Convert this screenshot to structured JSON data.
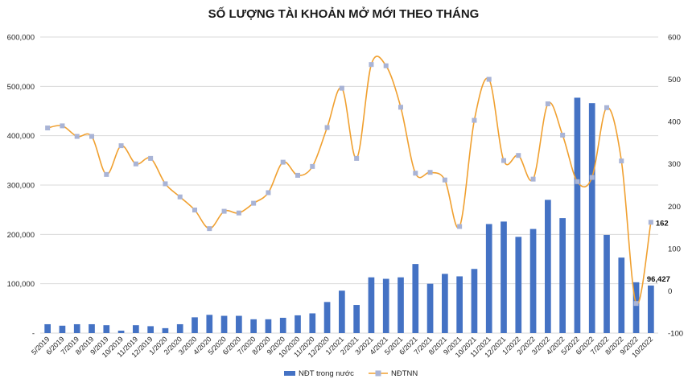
{
  "chart_data": {
    "type": "bar+line",
    "title": "SỐ LƯỢNG TÀI KHOẢN MỞ MỚI THEO THÁNG",
    "categories": [
      "5/2019",
      "6/2019",
      "7/2019",
      "8/2019",
      "9/2019",
      "10/2019",
      "11/2019",
      "12/2019",
      "1/2020",
      "2/2020",
      "3/2020",
      "4/2020",
      "5/2020",
      "6/2020",
      "7/2020",
      "8/2020",
      "9/2020",
      "10/2020",
      "11/2020",
      "12/2020",
      "1/2021",
      "2/2021",
      "3/2021",
      "4/2021",
      "5/2021",
      "6/2021",
      "7/2021",
      "8/2021",
      "9/2021",
      "10/2021",
      "11/2021",
      "12/2021",
      "1/2022",
      "2/2022",
      "3/2022",
      "4/2022",
      "5/2022",
      "6/2022",
      "7/2022",
      "8/2022",
      "9/2022",
      "10/2022"
    ],
    "y_left": {
      "min": 0,
      "max": 600000,
      "step": 100000,
      "ticks": [
        "-",
        "100,000",
        "200,000",
        "300,000",
        "400,000",
        "500,000",
        "600,000"
      ]
    },
    "y_right": {
      "min": -100,
      "max": 600,
      "step": 100,
      "ticks": [
        "-100",
        "0",
        "100",
        "200",
        "300",
        "400",
        "500",
        "600"
      ]
    },
    "series": [
      {
        "name": "NĐT trong nước",
        "type": "bar",
        "axis": "left",
        "color": "#4472c4",
        "values": [
          18000,
          15000,
          18000,
          18000,
          16000,
          5000,
          16000,
          14000,
          10000,
          18000,
          32000,
          37000,
          35000,
          35000,
          28000,
          28000,
          31000,
          36000,
          40000,
          63000,
          86000,
          57000,
          113000,
          110000,
          113000,
          140000,
          100000,
          120000,
          115000,
          130000,
          221000,
          226000,
          195000,
          211000,
          270000,
          233000,
          477000,
          466000,
          199000,
          153000,
          103000,
          96427
        ]
      },
      {
        "name": "NĐTNN",
        "type": "line",
        "axis": "right",
        "color": "#f0a030",
        "marker_color": "#a9b4d6",
        "values": [
          385,
          390,
          365,
          365,
          275,
          343,
          300,
          313,
          253,
          222,
          191,
          147,
          188,
          184,
          207,
          232,
          304,
          273,
          294,
          386,
          479,
          313,
          535,
          532,
          434,
          278,
          280,
          262,
          152,
          403,
          500,
          308,
          320,
          264,
          442,
          368,
          258,
          268,
          433,
          307,
          -30,
          162
        ]
      }
    ],
    "annotations": [
      {
        "series": 0,
        "index": 41,
        "text": "96,427"
      },
      {
        "series": 1,
        "index": 41,
        "text": "162"
      }
    ],
    "legend": {
      "position": "bottom",
      "entries": [
        "NĐT trong nước",
        "NĐTNN"
      ]
    }
  }
}
